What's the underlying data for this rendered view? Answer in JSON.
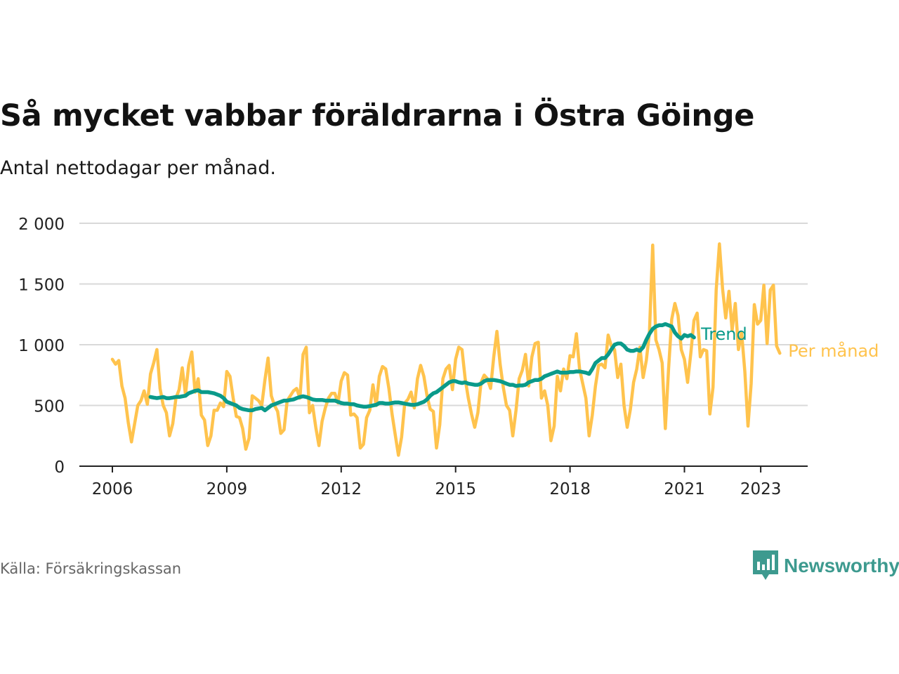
{
  "title": "Så mycket vabbar föräldrarna i Östra Göinge",
  "subtitle": "Antal nettodagar per månad.",
  "source": "Källa: Försäkringskassan",
  "brand": {
    "name": "Newsworthy",
    "icon": "newsworthy-logo-icon",
    "color": "#3d9a8f"
  },
  "colors": {
    "monthly": "#ffc34d",
    "trend": "#0a9a8a",
    "grid": "#d9d9d9",
    "axis": "#222222"
  },
  "chart_data": {
    "type": "line",
    "title": "Så mycket vabbar föräldrarna i Östra Göinge",
    "subtitle": "Antal nettodagar per månad.",
    "xlabel": "",
    "ylabel": "",
    "ylim": [
      0,
      2000
    ],
    "yticks": [
      0,
      500,
      1000,
      1500,
      2000
    ],
    "ytick_labels": [
      "0",
      "500",
      "1 000",
      "1 500",
      "2 000"
    ],
    "xticks": [
      "2006",
      "2009",
      "2012",
      "2015",
      "2018",
      "2021",
      "2023"
    ],
    "grid": "horizontal",
    "legend": "direct labels at right end of lines",
    "x_start": "2006-01",
    "series": [
      {
        "name": "Per månad",
        "values": [
          880,
          840,
          870,
          660,
          560,
          360,
          200,
          350,
          500,
          540,
          620,
          510,
          760,
          850,
          960,
          640,
          500,
          440,
          250,
          350,
          560,
          630,
          810,
          590,
          830,
          940,
          610,
          720,
          420,
          380,
          170,
          250,
          460,
          460,
          520,
          490,
          780,
          740,
          560,
          410,
          400,
          310,
          140,
          230,
          580,
          560,
          540,
          500,
          710,
          890,
          580,
          500,
          450,
          270,
          300,
          540,
          580,
          620,
          640,
          560,
          920,
          980,
          440,
          500,
          320,
          170,
          370,
          480,
          560,
          600,
          600,
          520,
          700,
          770,
          750,
          420,
          430,
          400,
          150,
          180,
          400,
          460,
          670,
          500,
          740,
          820,
          800,
          640,
          430,
          260,
          90,
          240,
          520,
          550,
          610,
          480,
          720,
          830,
          740,
          580,
          470,
          450,
          150,
          340,
          720,
          800,
          830,
          630,
          880,
          980,
          960,
          720,
          560,
          430,
          320,
          440,
          690,
          750,
          720,
          640,
          900,
          1110,
          840,
          650,
          500,
          460,
          250,
          460,
          720,
          790,
          920,
          660,
          900,
          1010,
          1020,
          560,
          620,
          500,
          210,
          330,
          740,
          620,
          800,
          720,
          910,
          900,
          1090,
          800,
          680,
          560,
          250,
          420,
          660,
          830,
          840,
          810,
          1080,
          990,
          960,
          730,
          840,
          500,
          320,
          470,
          690,
          800,
          980,
          730,
          870,
          1100,
          1820,
          1040,
          960,
          850,
          310,
          800,
          1210,
          1340,
          1240,
          960,
          880,
          690,
          930,
          1200,
          1260,
          900,
          960,
          950,
          430,
          650,
          1450,
          1830,
          1460,
          1220,
          1440,
          1120,
          1340,
          960,
          1100,
          780,
          330,
          680,
          1330,
          1170,
          1200,
          1490,
          1010,
          1450,
          1490,
          990,
          930
        ]
      },
      {
        "name": "Trend",
        "start_index": 12,
        "values": [
          570,
          565,
          560,
          565,
          570,
          560,
          560,
          565,
          570,
          570,
          575,
          580,
          600,
          610,
          620,
          625,
          610,
          610,
          610,
          605,
          600,
          590,
          580,
          560,
          530,
          520,
          510,
          500,
          480,
          470,
          465,
          460,
          460,
          470,
          475,
          480,
          460,
          480,
          500,
          510,
          520,
          530,
          540,
          540,
          545,
          550,
          560,
          570,
          575,
          570,
          560,
          550,
          545,
          545,
          545,
          540,
          540,
          540,
          540,
          530,
          520,
          515,
          515,
          510,
          510,
          500,
          495,
          490,
          490,
          495,
          500,
          505,
          520,
          520,
          515,
          515,
          520,
          525,
          525,
          520,
          515,
          510,
          505,
          505,
          510,
          520,
          530,
          550,
          580,
          600,
          610,
          630,
          650,
          670,
          690,
          700,
          700,
          690,
          685,
          690,
          680,
          675,
          670,
          670,
          680,
          700,
          710,
          710,
          710,
          705,
          700,
          690,
          680,
          670,
          670,
          660,
          665,
          665,
          670,
          690,
          700,
          710,
          710,
          720,
          740,
          750,
          760,
          770,
          780,
          770,
          770,
          770,
          775,
          775,
          780,
          780,
          775,
          770,
          760,
          800,
          850,
          870,
          890,
          890,
          920,
          960,
          1000,
          1010,
          1010,
          990,
          960,
          950,
          950,
          960,
          950,
          980,
          1040,
          1090,
          1130,
          1150,
          1160,
          1160,
          1170,
          1160,
          1150,
          1100,
          1070,
          1050,
          1080,
          1070,
          1080,
          1060
        ]
      }
    ]
  }
}
